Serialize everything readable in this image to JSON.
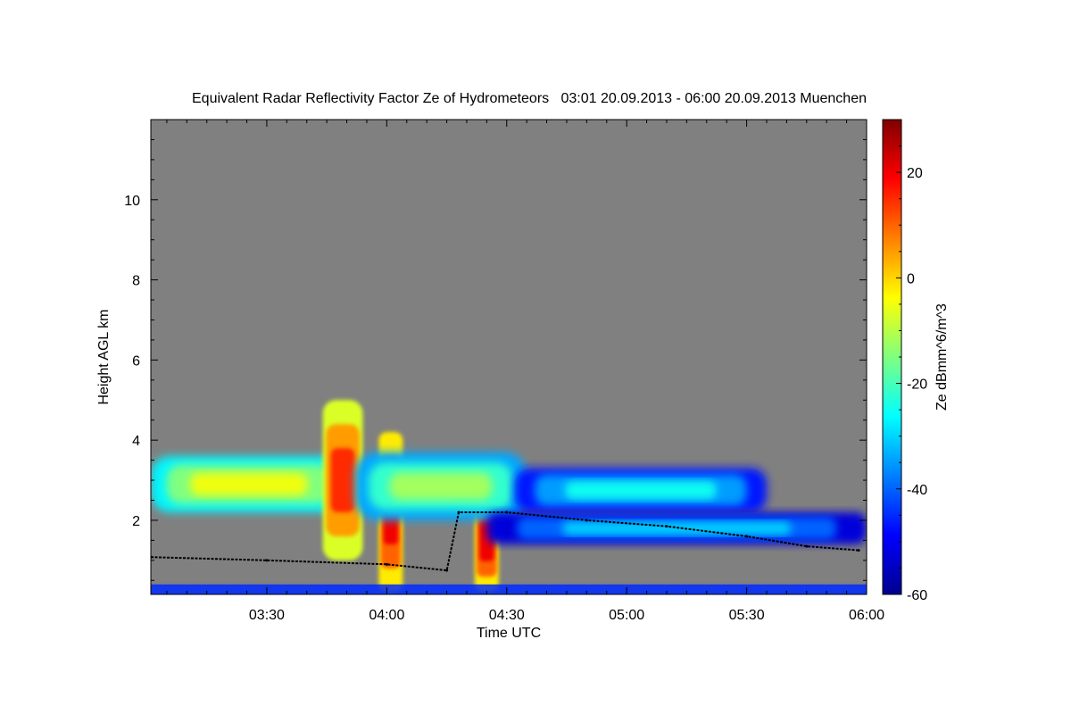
{
  "chart_data": {
    "type": "heatmap",
    "title": "Equivalent Radar Reflectivity Factor Ze of Hydrometeors   03:01 20.09.2013 - 06:00 20.09.2013 Muenchen",
    "xlabel": "Time UTC",
    "ylabel": "Height AGL km",
    "x_ticks": [
      {
        "value": 30,
        "label": "03:30"
      },
      {
        "value": 60,
        "label": "04:00"
      },
      {
        "value": 90,
        "label": "04:30"
      },
      {
        "value": 120,
        "label": "05:00"
      },
      {
        "value": 150,
        "label": "05:30"
      },
      {
        "value": 180,
        "label": "06:00"
      }
    ],
    "y_ticks": [
      {
        "value": 2,
        "label": "2"
      },
      {
        "value": 4,
        "label": "4"
      },
      {
        "value": 6,
        "label": "6"
      },
      {
        "value": 8,
        "label": "8"
      },
      {
        "value": 10,
        "label": "10"
      }
    ],
    "xlim": [
      1,
      180
    ],
    "ylim": [
      0.15,
      12
    ],
    "colorbar": {
      "label": "Ze dBmm^6/m^3",
      "range": [
        -60,
        30
      ],
      "ticks": [
        {
          "value": 20,
          "label": "20"
        },
        {
          "value": 0,
          "label": "0"
        },
        {
          "value": -20,
          "label": "-20"
        },
        {
          "value": -40,
          "label": "-40"
        },
        {
          "value": -60,
          "label": "-60"
        }
      ],
      "colormap": "jet"
    },
    "background_color": "#808080",
    "features": [
      {
        "kind": "cloud-layer",
        "t_start": 1,
        "t_end": 50,
        "base_km": 2.2,
        "top_km": 3.6,
        "ze_dbz": -5
      },
      {
        "kind": "convective-core",
        "t_start": 44,
        "t_end": 54,
        "base_km": 1.0,
        "top_km": 5.0,
        "ze_dbz": 15
      },
      {
        "kind": "precip-shaft",
        "t_start": 58,
        "t_end": 64,
        "base_km": 0.2,
        "top_km": 4.2,
        "ze_dbz": 20
      },
      {
        "kind": "precip-shaft",
        "t_start": 82,
        "t_end": 88,
        "base_km": 0.2,
        "top_km": 2.8,
        "ze_dbz": 20
      },
      {
        "kind": "cloud-layer",
        "t_start": 52,
        "t_end": 95,
        "base_km": 2.0,
        "top_km": 3.7,
        "ze_dbz": -12
      },
      {
        "kind": "cloud-layer",
        "t_start": 92,
        "t_end": 155,
        "base_km": 2.2,
        "top_km": 3.3,
        "ze_dbz": -25
      },
      {
        "kind": "cloud-layer",
        "t_start": 85,
        "t_end": 180,
        "base_km": 1.4,
        "top_km": 2.2,
        "ze_dbz": -30
      },
      {
        "kind": "near-surface-clutter",
        "t_start": 1,
        "t_end": 180,
        "base_km": 0.15,
        "top_km": 0.4,
        "ze_dbz": -45
      }
    ],
    "cloud_base_line": [
      {
        "t": 1,
        "h": 1.08
      },
      {
        "t": 30,
        "h": 1.0
      },
      {
        "t": 60,
        "h": 0.9
      },
      {
        "t": 75,
        "h": 0.75
      },
      {
        "t": 78,
        "h": 2.2
      },
      {
        "t": 90,
        "h": 2.2
      },
      {
        "t": 110,
        "h": 2.0
      },
      {
        "t": 130,
        "h": 1.85
      },
      {
        "t": 150,
        "h": 1.6
      },
      {
        "t": 165,
        "h": 1.35
      },
      {
        "t": 178,
        "h": 1.25
      }
    ]
  }
}
